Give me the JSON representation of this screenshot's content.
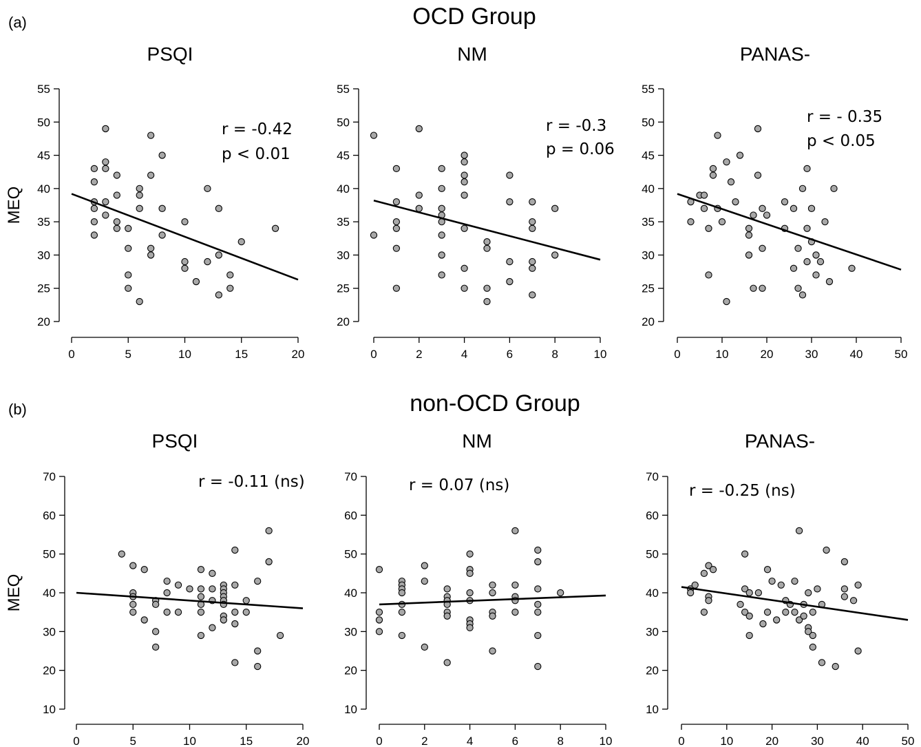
{
  "figure": {
    "groups": [
      {
        "title": "OCD Group",
        "label": "(a)"
      },
      {
        "title": "non-OCD Group",
        "label": "(b)"
      }
    ]
  },
  "chart_data": [
    {
      "type": "scatter",
      "group": 0,
      "title": "PSQI",
      "ylabel": "MEQ",
      "xlim": [
        0,
        20
      ],
      "ylim": [
        20,
        55
      ],
      "xticks": [
        0,
        5,
        10,
        15,
        20
      ],
      "yticks": [
        20,
        25,
        30,
        35,
        40,
        45,
        50,
        55
      ],
      "annotation": [
        "r = -0.42",
        "p < 0.01"
      ],
      "fit": {
        "x": [
          0,
          20
        ],
        "y": [
          39.2,
          26.3
        ]
      },
      "points": [
        [
          2,
          43
        ],
        [
          2,
          41
        ],
        [
          2,
          38
        ],
        [
          2,
          37
        ],
        [
          2,
          35
        ],
        [
          2,
          33
        ],
        [
          3,
          49
        ],
        [
          3,
          44
        ],
        [
          3,
          43
        ],
        [
          3,
          38
        ],
        [
          3,
          36
        ],
        [
          4,
          42
        ],
        [
          4,
          39
        ],
        [
          4,
          35
        ],
        [
          4,
          34
        ],
        [
          5,
          34
        ],
        [
          5,
          31
        ],
        [
          5,
          27
        ],
        [
          5,
          25
        ],
        [
          6,
          40
        ],
        [
          6,
          39
        ],
        [
          6,
          37
        ],
        [
          6,
          23
        ],
        [
          7,
          48
        ],
        [
          7,
          42
        ],
        [
          7,
          31
        ],
        [
          7,
          30
        ],
        [
          8,
          45
        ],
        [
          8,
          37
        ],
        [
          8,
          33
        ],
        [
          10,
          35
        ],
        [
          10,
          29
        ],
        [
          10,
          28
        ],
        [
          11,
          26
        ],
        [
          12,
          40
        ],
        [
          12,
          29
        ],
        [
          13,
          37
        ],
        [
          13,
          30
        ],
        [
          13,
          24
        ],
        [
          14,
          27
        ],
        [
          14,
          25
        ],
        [
          15,
          32
        ],
        [
          18,
          34
        ]
      ]
    },
    {
      "type": "scatter",
      "group": 0,
      "title": "NM",
      "ylabel": "",
      "xlim": [
        0,
        10
      ],
      "ylim": [
        20,
        55
      ],
      "xticks": [
        0,
        2,
        4,
        6,
        8,
        10
      ],
      "yticks": [
        20,
        25,
        30,
        35,
        40,
        45,
        50,
        55
      ],
      "annotation": [
        "r = -0.3",
        "p = 0.06"
      ],
      "fit": {
        "x": [
          0,
          10
        ],
        "y": [
          38.2,
          29.3
        ]
      },
      "points": [
        [
          0,
          48
        ],
        [
          0,
          33
        ],
        [
          1,
          43
        ],
        [
          1,
          38
        ],
        [
          1,
          35
        ],
        [
          1,
          34
        ],
        [
          1,
          31
        ],
        [
          1,
          25
        ],
        [
          2,
          49
        ],
        [
          2,
          39
        ],
        [
          2,
          37
        ],
        [
          3,
          43
        ],
        [
          3,
          40
        ],
        [
          3,
          37
        ],
        [
          3,
          36
        ],
        [
          3,
          35
        ],
        [
          3,
          33
        ],
        [
          3,
          30
        ],
        [
          3,
          27
        ],
        [
          4,
          45
        ],
        [
          4,
          44
        ],
        [
          4,
          42
        ],
        [
          4,
          41
        ],
        [
          4,
          39
        ],
        [
          4,
          34
        ],
        [
          4,
          28
        ],
        [
          4,
          25
        ],
        [
          5,
          32
        ],
        [
          5,
          31
        ],
        [
          5,
          25
        ],
        [
          5,
          23
        ],
        [
          6,
          42
        ],
        [
          6,
          38
        ],
        [
          6,
          29
        ],
        [
          6,
          26
        ],
        [
          7,
          38
        ],
        [
          7,
          35
        ],
        [
          7,
          34
        ],
        [
          7,
          29
        ],
        [
          7,
          28
        ],
        [
          7,
          24
        ],
        [
          8,
          37
        ],
        [
          8,
          30
        ]
      ]
    },
    {
      "type": "scatter",
      "group": 0,
      "title": "PANAS-",
      "ylabel": "",
      "xlim": [
        0,
        50
      ],
      "ylim": [
        20,
        55
      ],
      "xticks": [
        0,
        10,
        20,
        30,
        40,
        50
      ],
      "yticks": [
        20,
        25,
        30,
        35,
        40,
        45,
        50,
        55
      ],
      "annotation": [
        "r = - 0.35",
        "p < 0.05"
      ],
      "fit": {
        "x": [
          0,
          50
        ],
        "y": [
          39.2,
          27.8
        ]
      },
      "points": [
        [
          3,
          38
        ],
        [
          3,
          35
        ],
        [
          5,
          39
        ],
        [
          6,
          39
        ],
        [
          6,
          37
        ],
        [
          7,
          34
        ],
        [
          7,
          27
        ],
        [
          8,
          43
        ],
        [
          8,
          42
        ],
        [
          9,
          48
        ],
        [
          9,
          37
        ],
        [
          10,
          35
        ],
        [
          11,
          44
        ],
        [
          11,
          23
        ],
        [
          12,
          41
        ],
        [
          13,
          38
        ],
        [
          14,
          45
        ],
        [
          16,
          34
        ],
        [
          16,
          33
        ],
        [
          16,
          30
        ],
        [
          17,
          36
        ],
        [
          17,
          25
        ],
        [
          18,
          49
        ],
        [
          18,
          42
        ],
        [
          19,
          37
        ],
        [
          19,
          31
        ],
        [
          19,
          25
        ],
        [
          20,
          36
        ],
        [
          24,
          38
        ],
        [
          24,
          34
        ],
        [
          26,
          37
        ],
        [
          26,
          28
        ],
        [
          27,
          31
        ],
        [
          27,
          25
        ],
        [
          28,
          40
        ],
        [
          28,
          24
        ],
        [
          29,
          43
        ],
        [
          29,
          34
        ],
        [
          29,
          29
        ],
        [
          30,
          37
        ],
        [
          30,
          32
        ],
        [
          31,
          30
        ],
        [
          31,
          27
        ],
        [
          32,
          29
        ],
        [
          33,
          35
        ],
        [
          34,
          26
        ],
        [
          35,
          40
        ],
        [
          39,
          28
        ]
      ]
    },
    {
      "type": "scatter",
      "group": 1,
      "title": "PSQI",
      "ylabel": "MEQ",
      "xlim": [
        0,
        20
      ],
      "ylim": [
        10,
        70
      ],
      "xticks": [
        0,
        5,
        10,
        15,
        20
      ],
      "yticks": [
        10,
        20,
        30,
        40,
        50,
        60,
        70
      ],
      "annotation": [
        "r = -0.11 (ns)"
      ],
      "fit": {
        "x": [
          0,
          20
        ],
        "y": [
          40.0,
          36.0
        ]
      },
      "points": [
        [
          4,
          50
        ],
        [
          5,
          47
        ],
        [
          5,
          40
        ],
        [
          5,
          39
        ],
        [
          5,
          37
        ],
        [
          5,
          35
        ],
        [
          6,
          46
        ],
        [
          6,
          33
        ],
        [
          7,
          38
        ],
        [
          7,
          37
        ],
        [
          7,
          30
        ],
        [
          7,
          26
        ],
        [
          8,
          43
        ],
        [
          8,
          40
        ],
        [
          8,
          35
        ],
        [
          9,
          42
        ],
        [
          9,
          35
        ],
        [
          10,
          41
        ],
        [
          11,
          46
        ],
        [
          11,
          41
        ],
        [
          11,
          39
        ],
        [
          11,
          37
        ],
        [
          11,
          35
        ],
        [
          11,
          29
        ],
        [
          12,
          45
        ],
        [
          12,
          41
        ],
        [
          12,
          38
        ],
        [
          12,
          31
        ],
        [
          13,
          42
        ],
        [
          13,
          41
        ],
        [
          13,
          40
        ],
        [
          13,
          39
        ],
        [
          13,
          38
        ],
        [
          13,
          37
        ],
        [
          13,
          34
        ],
        [
          13,
          33
        ],
        [
          14,
          51
        ],
        [
          14,
          42
        ],
        [
          14,
          35
        ],
        [
          14,
          32
        ],
        [
          14,
          22
        ],
        [
          15,
          38
        ],
        [
          15,
          35
        ],
        [
          16,
          43
        ],
        [
          16,
          25
        ],
        [
          16,
          21
        ],
        [
          17,
          56
        ],
        [
          17,
          48
        ],
        [
          18,
          29
        ]
      ]
    },
    {
      "type": "scatter",
      "group": 1,
      "title": "NM",
      "ylabel": "",
      "xlim": [
        0,
        10
      ],
      "ylim": [
        10,
        70
      ],
      "xticks": [
        0,
        2,
        4,
        6,
        8,
        10
      ],
      "yticks": [
        10,
        20,
        30,
        40,
        50,
        60,
        70
      ],
      "annotation": [
        "r = 0.07 (ns)"
      ],
      "fit": {
        "x": [
          0,
          10
        ],
        "y": [
          37.0,
          39.3
        ]
      },
      "points": [
        [
          0,
          46
        ],
        [
          0,
          35
        ],
        [
          0,
          33
        ],
        [
          0,
          30
        ],
        [
          1,
          43
        ],
        [
          1,
          42
        ],
        [
          1,
          41
        ],
        [
          1,
          40
        ],
        [
          1,
          37
        ],
        [
          1,
          35
        ],
        [
          1,
          29
        ],
        [
          2,
          47
        ],
        [
          2,
          43
        ],
        [
          2,
          26
        ],
        [
          3,
          41
        ],
        [
          3,
          39
        ],
        [
          3,
          38
        ],
        [
          3,
          37
        ],
        [
          3,
          35
        ],
        [
          3,
          34
        ],
        [
          3,
          22
        ],
        [
          4,
          50
        ],
        [
          4,
          46
        ],
        [
          4,
          45
        ],
        [
          4,
          40
        ],
        [
          4,
          38
        ],
        [
          4,
          33
        ],
        [
          4,
          32
        ],
        [
          4,
          31
        ],
        [
          5,
          42
        ],
        [
          5,
          40
        ],
        [
          5,
          35
        ],
        [
          5,
          34
        ],
        [
          5,
          25
        ],
        [
          6,
          56
        ],
        [
          6,
          42
        ],
        [
          6,
          39
        ],
        [
          6,
          38
        ],
        [
          6,
          35
        ],
        [
          7,
          51
        ],
        [
          7,
          48
        ],
        [
          7,
          41
        ],
        [
          7,
          37
        ],
        [
          7,
          35
        ],
        [
          7,
          29
        ],
        [
          7,
          21
        ],
        [
          8,
          40
        ]
      ]
    },
    {
      "type": "scatter",
      "group": 1,
      "title": "PANAS-",
      "ylabel": "",
      "xlim": [
        0,
        50
      ],
      "ylim": [
        10,
        70
      ],
      "xticks": [
        0,
        10,
        20,
        30,
        40,
        50
      ],
      "yticks": [
        10,
        20,
        30,
        40,
        50,
        60,
        70
      ],
      "annotation": [
        "r = -0.25 (ns)"
      ],
      "fit": {
        "x": [
          0,
          50
        ],
        "y": [
          41.5,
          33.0
        ]
      },
      "points": [
        [
          2,
          41
        ],
        [
          2,
          40
        ],
        [
          3,
          42
        ],
        [
          5,
          45
        ],
        [
          5,
          35
        ],
        [
          6,
          47
        ],
        [
          6,
          39
        ],
        [
          6,
          38
        ],
        [
          7,
          46
        ],
        [
          13,
          37
        ],
        [
          14,
          50
        ],
        [
          14,
          41
        ],
        [
          14,
          35
        ],
        [
          15,
          40
        ],
        [
          15,
          34
        ],
        [
          15,
          29
        ],
        [
          17,
          40
        ],
        [
          18,
          32
        ],
        [
          19,
          46
        ],
        [
          19,
          35
        ],
        [
          20,
          43
        ],
        [
          21,
          33
        ],
        [
          22,
          42
        ],
        [
          23,
          38
        ],
        [
          23,
          35
        ],
        [
          24,
          37
        ],
        [
          25,
          43
        ],
        [
          25,
          35
        ],
        [
          26,
          56
        ],
        [
          26,
          33
        ],
        [
          27,
          37
        ],
        [
          27,
          34
        ],
        [
          28,
          40
        ],
        [
          28,
          31
        ],
        [
          28,
          30
        ],
        [
          29,
          35
        ],
        [
          29,
          29
        ],
        [
          29,
          26
        ],
        [
          30,
          41
        ],
        [
          31,
          37
        ],
        [
          31,
          22
        ],
        [
          32,
          51
        ],
        [
          34,
          21
        ],
        [
          36,
          48
        ],
        [
          36,
          41
        ],
        [
          36,
          39
        ],
        [
          38,
          38
        ],
        [
          39,
          42
        ],
        [
          39,
          25
        ]
      ]
    }
  ]
}
